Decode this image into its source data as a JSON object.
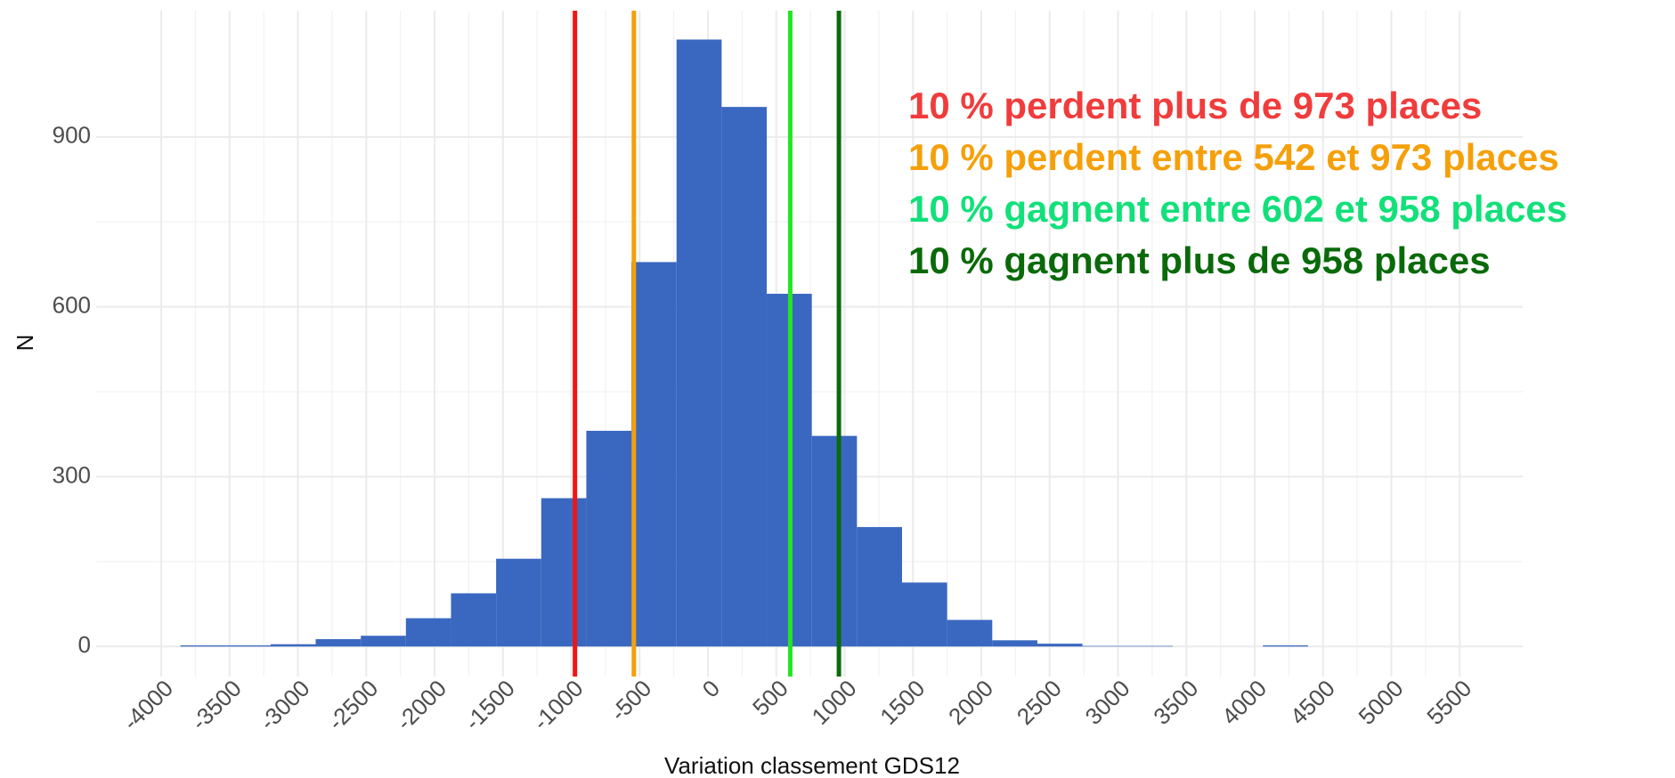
{
  "chart_data": {
    "type": "histogram",
    "xlabel": "Variation classement GDS12",
    "ylabel": "N",
    "bins": [
      -3860,
      -3530,
      -3200,
      -2870,
      -2540,
      -2210,
      -1880,
      -1550,
      -1220,
      -890,
      -560,
      -230,
      100,
      430,
      760,
      1090,
      1420,
      1750,
      2080,
      2410,
      2740,
      3070,
      3400,
      3730,
      4060,
      4390
    ],
    "counts": [
      2,
      2,
      4,
      13,
      19,
      50,
      94,
      155,
      262,
      381,
      679,
      1072,
      953,
      623,
      372,
      211,
      113,
      47,
      11,
      5,
      1,
      1,
      0,
      0,
      2
    ],
    "color": "#3a68c0",
    "xlim": [
      -4476,
      5961
    ],
    "ylim": [
      -53,
      1123
    ],
    "xticks": [
      -4000,
      -3500,
      -3000,
      -2500,
      -2000,
      -1500,
      -1000,
      -500,
      0,
      500,
      1000,
      1500,
      2000,
      2500,
      3000,
      3500,
      4000,
      4500,
      5000,
      5500
    ],
    "yticks": [
      0,
      300,
      600,
      900
    ],
    "grid": true,
    "vlines": [
      {
        "x": -973,
        "color": "#f01414"
      },
      {
        "x": -542,
        "color": "#f5a00a"
      },
      {
        "x": 602,
        "color": "#22e622"
      },
      {
        "x": 958,
        "color": "#0a6a0a"
      }
    ],
    "annotations": [
      {
        "text": "10 % perdent plus de 973 places",
        "color": "#f03c3c"
      },
      {
        "text": "10 % perdent entre 542 et 973 places",
        "color": "#f5a00a"
      },
      {
        "text": "10 % gagnent entre 602 et 958 places",
        "color": "#12e07a"
      },
      {
        "text": "10 % gagnent plus de 958 places",
        "color": "#0a6a0a"
      }
    ]
  }
}
